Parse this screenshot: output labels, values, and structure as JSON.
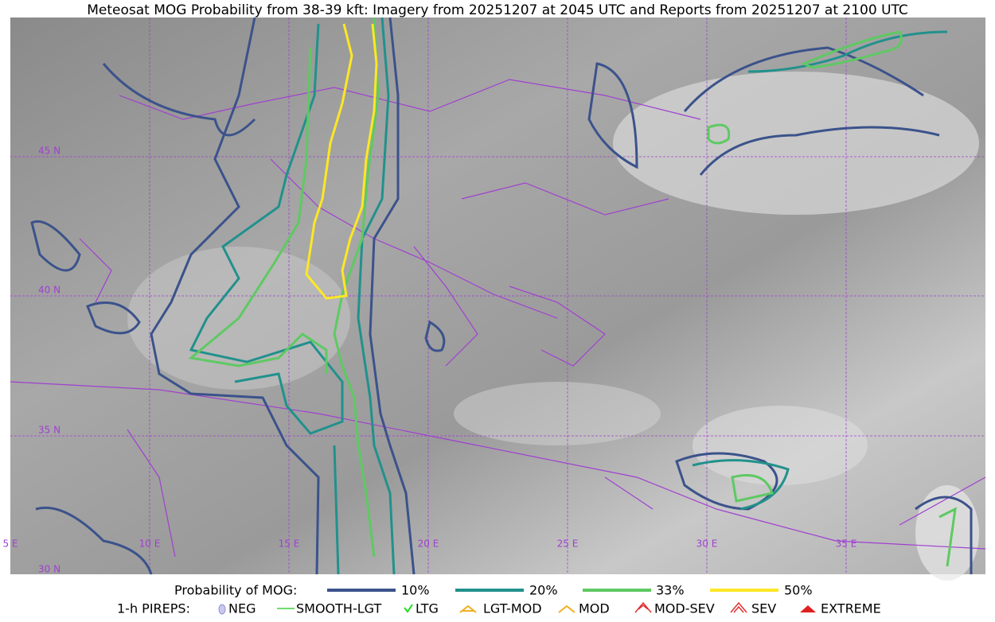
{
  "title": "Meteosat MOG Probability from 38-39 kft: Imagery from 20251207 at 2045 UTC and Reports from 20251207 at 2100 UTC",
  "map": {
    "lat_labels": [
      "45 N",
      "40 N",
      "35 N",
      "30 N"
    ],
    "lon_labels": [
      "5 E",
      "10 E",
      "15 E",
      "20 E",
      "25 E",
      "30 E",
      "35 E"
    ]
  },
  "legend": {
    "probability": {
      "label": "Probability of MOG:",
      "items": [
        "10%",
        "20%",
        "33%",
        "50%"
      ]
    },
    "pireps": {
      "label": "1-h PIREPS:",
      "items": [
        "NEG",
        "SMOOTH-LGT",
        "LTG",
        "LGT-MOD",
        "MOD",
        "MOD-SEV",
        "SEV",
        "EXTREME"
      ]
    }
  }
}
